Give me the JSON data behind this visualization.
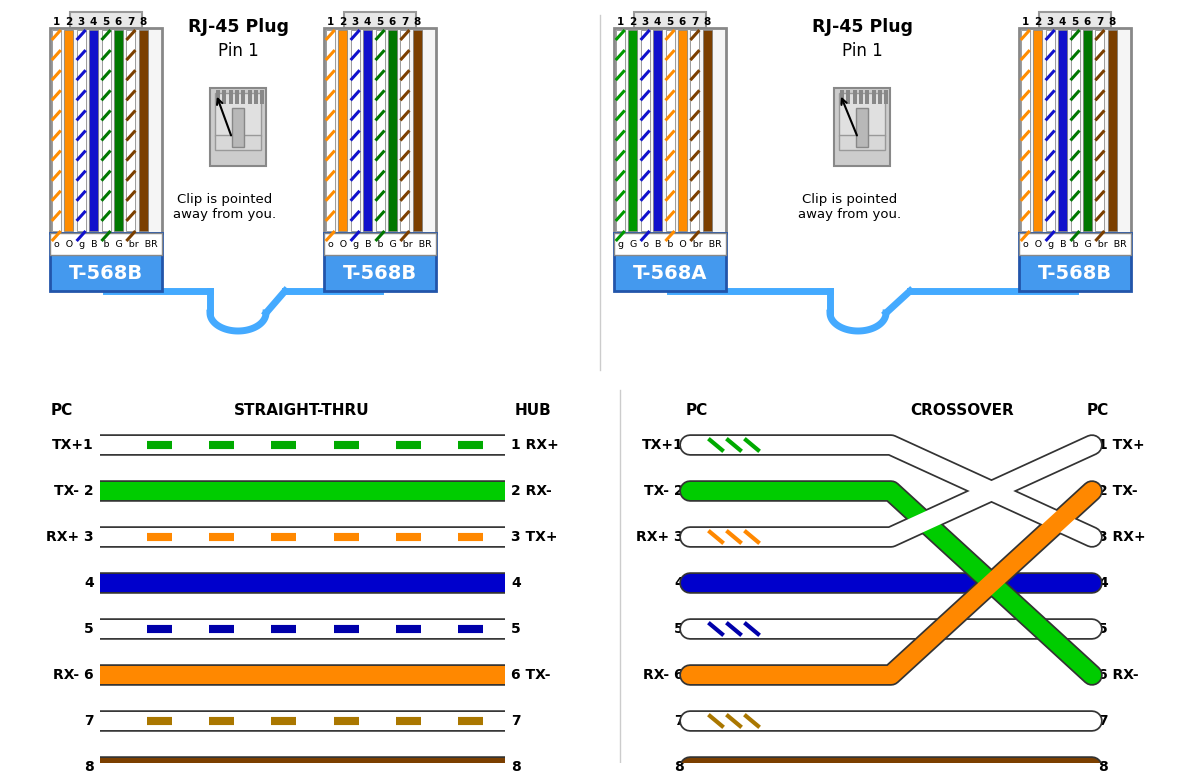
{
  "bg_color": "#ffffff",
  "connector_blue": "#4499ee",
  "connector_border": "#2255aa",
  "pin_colors_568b": [
    "#ffffff",
    "#ff8c00",
    "#ffffff",
    "#1111cc",
    "#ffffff",
    "#007700",
    "#ffffff",
    "#7b3f00"
  ],
  "pin_stripe_568b": [
    "#ff8c00",
    null,
    "#1111cc",
    null,
    "#007700",
    null,
    "#7b3f00",
    null
  ],
  "pin_colors_568a": [
    "#ffffff",
    "#009900",
    "#ffffff",
    "#1111cc",
    "#ffffff",
    "#ff8c00",
    "#ffffff",
    "#7b3f00"
  ],
  "pin_stripe_568a": [
    "#009900",
    null,
    "#1111cc",
    null,
    "#ff8c00",
    null,
    "#7b3f00",
    null
  ],
  "label_568b": "T-568B",
  "label_568a": "T-568A",
  "pin_abbr_568b": "o  O  g  B  b  G  br  BR",
  "pin_abbr_568a": "g  G  o  B  b  O  br  BR",
  "straight_left_labels": [
    "TX+1",
    "TX- 2",
    "RX+ 3",
    "4",
    "5",
    "RX- 6",
    "7",
    "8"
  ],
  "straight_right_labels": [
    "1 RX+",
    "2 RX-",
    "3 TX+",
    "4",
    "5",
    "6 TX-",
    "7",
    "8"
  ],
  "crossover_left_labels": [
    "TX+1",
    "TX- 2",
    "RX+ 3",
    "4",
    "5",
    "RX- 6",
    "7",
    "8"
  ],
  "crossover_right_labels": [
    "1 TX+",
    "2 TX-",
    "3 RX+",
    "4",
    "5",
    "6 RX-",
    "7",
    "8"
  ],
  "wire_fills": [
    "#ffffff",
    "#00cc00",
    "#ffffff",
    "#0000cc",
    "#ffffff",
    "#ff8800",
    "#ffffff",
    "#7b3f00"
  ],
  "wire_stripes": [
    "#00aa00",
    null,
    "#ff8800",
    null,
    "#0000aa",
    null,
    "#aa7700",
    null
  ],
  "cross_map": [
    2,
    5,
    0,
    3,
    4,
    1,
    6,
    7
  ],
  "header_left": "PC",
  "header_mid_straight": "STRAIGHT-THRU",
  "header_right_straight": "HUB",
  "header_mid_cross": "CROSSOVER",
  "header_right_cross": "PC",
  "cable_blue": "#44aaff",
  "wire_lw": 13
}
